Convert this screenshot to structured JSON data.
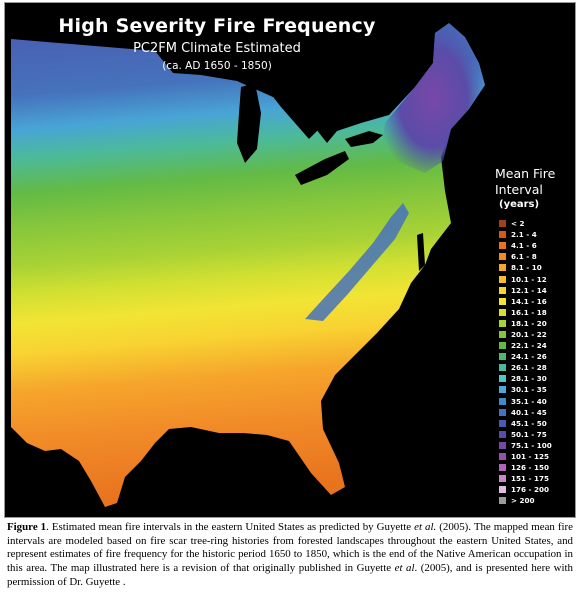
{
  "map": {
    "title": "High Severity Fire Frequency",
    "subtitle": "PC2FM Climate Estimated",
    "period": "(ca. AD 1650 - 1850)"
  },
  "legend": {
    "title": "Mean Fire\nInterval",
    "units": "(years)",
    "items": [
      {
        "label": "< 2",
        "color": "#a0401c"
      },
      {
        "label": "2.1 - 4",
        "color": "#d8571a"
      },
      {
        "label": "4.1 - 6",
        "color": "#e8731e"
      },
      {
        "label": "6.1 - 8",
        "color": "#f18b28"
      },
      {
        "label": "8.1 - 10",
        "color": "#f6a52c"
      },
      {
        "label": "10.1 - 12",
        "color": "#f8bc30"
      },
      {
        "label": "12.1 - 14",
        "color": "#f8d332"
      },
      {
        "label": "14.1 - 16",
        "color": "#f2e434"
      },
      {
        "label": "16.1 - 18",
        "color": "#d2e032"
      },
      {
        "label": "18.1 - 20",
        "color": "#a8d236"
      },
      {
        "label": "20.1 - 22",
        "color": "#86c63c"
      },
      {
        "label": "22.1 - 24",
        "color": "#62ba46"
      },
      {
        "label": "24.1 - 26",
        "color": "#4cb66a"
      },
      {
        "label": "26.1 - 28",
        "color": "#4cba9a"
      },
      {
        "label": "28.1 - 30",
        "color": "#56c2c8"
      },
      {
        "label": "30.1 - 35",
        "color": "#4ca8d8"
      },
      {
        "label": "35.1 - 40",
        "color": "#4488cc"
      },
      {
        "label": "40.1 - 45",
        "color": "#4672bc"
      },
      {
        "label": "45.1 - 50",
        "color": "#4a5cb0"
      },
      {
        "label": "50.1 - 75",
        "color": "#5a4ca8"
      },
      {
        "label": "75.1 - 100",
        "color": "#7848a8"
      },
      {
        "label": "101 - 125",
        "color": "#9450ac"
      },
      {
        "label": "126 - 150",
        "color": "#b066b8"
      },
      {
        "label": "151 - 175",
        "color": "#c888c8"
      },
      {
        "label": "176 - 200",
        "color": "#e0bce0"
      },
      {
        "label": "> 200",
        "color": "#9a9a9a"
      }
    ]
  },
  "caption": {
    "figure_label": "Figure 1",
    "t1": ". Estimated mean fire intervals in the eastern United States as predicted by Guyette ",
    "etal1": "et al.",
    "t2": " (2005). The mapped mean fire intervals are modeled based on fire scar tree-ring histories from forested landscapes throughout the eastern United States, and represent estimates of fire frequency for the historic period 1650 to 1850, which is the end of the Native American occupation in this area. The map illustrated here is a revision of that originally published in Guyette ",
    "etal2": "et al",
    "t3": ". (2005), and is presented here with permission of Dr. Guyette ."
  }
}
